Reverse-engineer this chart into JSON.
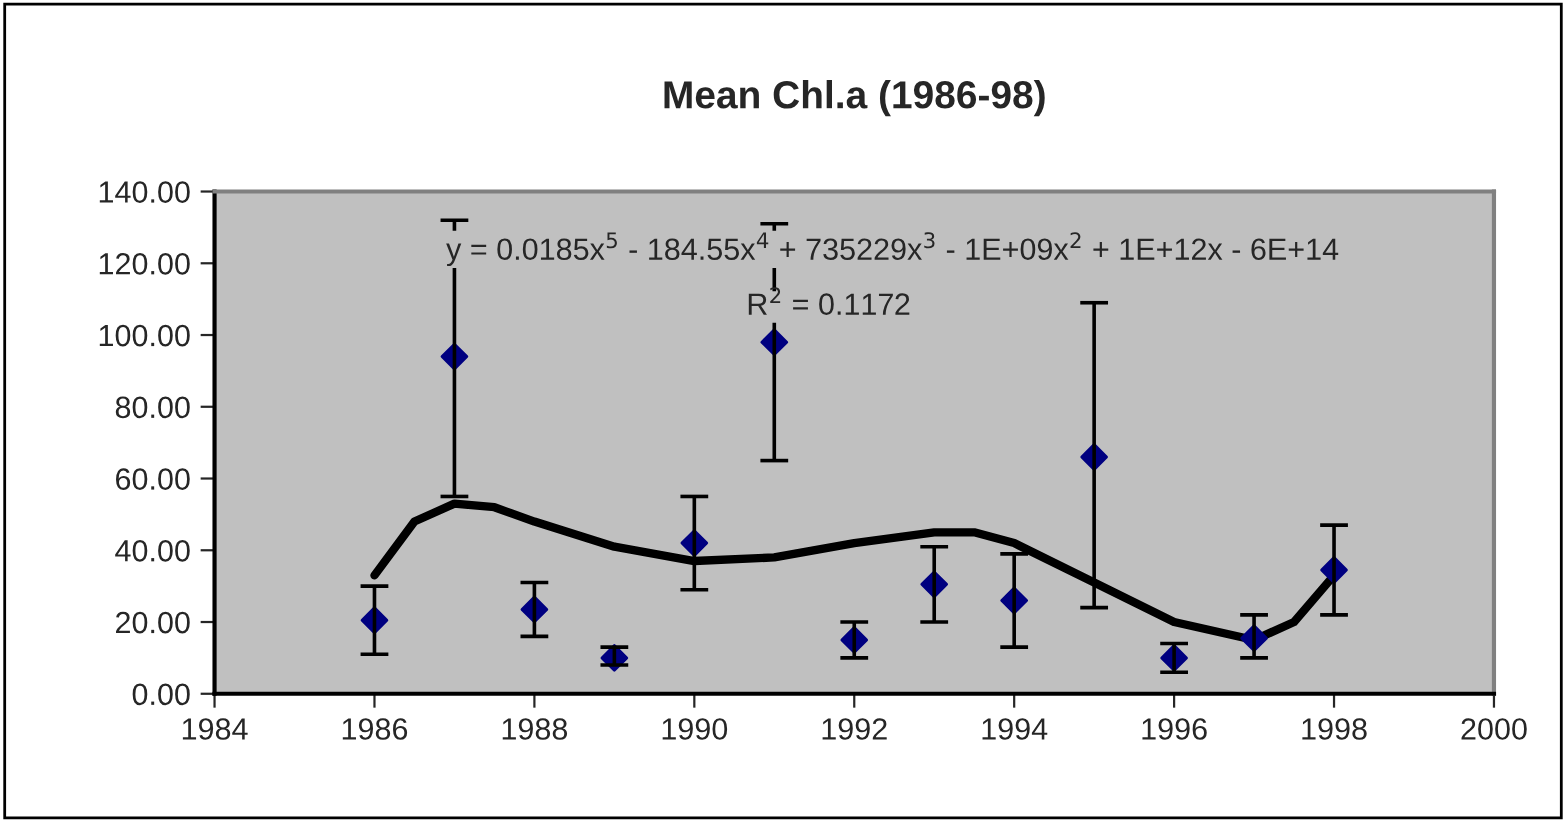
{
  "chart_data": {
    "type": "scatter",
    "title": "Mean Chl.a (1986-98)",
    "x": [
      1986,
      1987,
      1988,
      1989,
      1990,
      1991,
      1992,
      1993,
      1994,
      1995,
      1996,
      1997,
      1998
    ],
    "series": [
      {
        "color": "#000080",
        "marker": "diamond",
        "values": [
          20.5,
          94,
          23.5,
          10,
          42,
          98,
          15,
          30.5,
          26,
          66,
          10,
          15.5,
          34.5
        ],
        "errors": [
          [
            11,
            30
          ],
          [
            55,
            132
          ],
          [
            16,
            31
          ],
          [
            8,
            13
          ],
          [
            29,
            55
          ],
          [
            65,
            131
          ],
          [
            10,
            20
          ],
          [
            20,
            41
          ],
          [
            13,
            39
          ],
          [
            24,
            109
          ],
          [
            6,
            14
          ],
          [
            10,
            22
          ],
          [
            22,
            47
          ]
        ]
      },
      {
        "type": "line",
        "color": "#000000",
        "marker": "none",
        "x": [
          1986,
          1986.5,
          1987,
          1987.5,
          1988,
          1989,
          1990,
          1991,
          1992,
          1993,
          1993.5,
          1994,
          1995,
          1996,
          1997,
          1997.5,
          1998
        ],
        "values": [
          33,
          48,
          53,
          52,
          48,
          41,
          37,
          38,
          42,
          45,
          45,
          42,
          31,
          20,
          15,
          20,
          33
        ]
      }
    ],
    "annotations": [
      "y = 0.0185x$^{5}$ - 184.55x$^{4}$ + 735229x$^{3}$ - 1E+09x$^{2}$ + 1E+12x - 6E+14",
      "R$^{2}$ = 0.1172"
    ],
    "xlim": [
      1984,
      2000
    ],
    "xticks": [
      1984,
      1986,
      1988,
      1990,
      1992,
      1994,
      1996,
      1998,
      2000
    ],
    "ylim": [
      0,
      140
    ],
    "yticks": [
      {
        "value": 0,
        "label": "0.00"
      },
      {
        "value": 20,
        "label": "20.00"
      },
      {
        "value": 40,
        "label": "40.00"
      },
      {
        "value": 60,
        "label": "60.00"
      },
      {
        "value": 80,
        "label": "80.00"
      },
      {
        "value": 100,
        "label": "100.00"
      },
      {
        "value": 120,
        "label": "120.00"
      },
      {
        "value": 140,
        "label": "140.00"
      }
    ],
    "grid": false,
    "legend": false
  }
}
